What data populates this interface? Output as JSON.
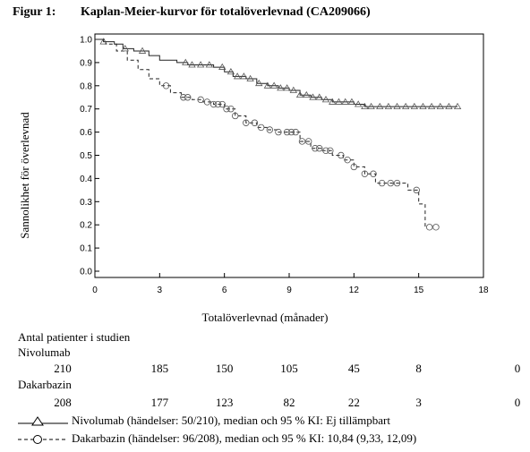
{
  "figure": {
    "label": "Figur 1:",
    "title": "Kaplan-Meier-kurvor för totalöverlevnad (CA209066)"
  },
  "chart_data": {
    "type": "line",
    "ylabel": "Sannolikhet för överlevnad",
    "xlabel": "Totalöverlevnad (månader)",
    "xlim": [
      0,
      18
    ],
    "ylim": [
      0,
      1.0
    ],
    "x_ticks": [
      "0",
      "3",
      "6",
      "9",
      "12",
      "15",
      "18"
    ],
    "y_ticks": [
      "0.0",
      "0.1",
      "0.2",
      "0.3",
      "0.4",
      "0.5",
      "0.6",
      "0.7",
      "0.8",
      "0.9",
      "1.0"
    ],
    "grid": false,
    "series": [
      {
        "name": "Nivolumab",
        "color": "#222222",
        "line_style": "solid",
        "marker": "triangle",
        "x": [
          0,
          0.4,
          0.9,
          1.3,
          1.8,
          2.5,
          3.0,
          3.8,
          4.3,
          5.0,
          5.5,
          6.0,
          6.4,
          7.0,
          7.5,
          8.0,
          8.5,
          9.0,
          9.5,
          10.0,
          10.5,
          11.0,
          11.5,
          12.0,
          12.5,
          13.0,
          14.0,
          15.0,
          16.0,
          16.8
        ],
        "y": [
          1.0,
          0.99,
          0.98,
          0.96,
          0.95,
          0.93,
          0.91,
          0.9,
          0.89,
          0.89,
          0.88,
          0.86,
          0.84,
          0.83,
          0.81,
          0.8,
          0.79,
          0.78,
          0.76,
          0.75,
          0.74,
          0.73,
          0.73,
          0.72,
          0.71,
          0.71,
          0.71,
          0.71,
          0.71,
          0.71
        ],
        "censor_x": [
          0.4,
          1.4,
          2.2,
          4.2,
          4.5,
          4.9,
          5.3,
          5.9,
          6.3,
          6.6,
          6.9,
          7.2,
          7.6,
          8.0,
          8.3,
          8.6,
          8.9,
          9.2,
          9.5,
          9.8,
          10.1,
          10.4,
          10.7,
          11.0,
          11.3,
          11.6,
          11.9,
          12.2,
          12.5,
          12.8,
          13.2,
          13.6,
          14.0,
          14.4,
          14.8,
          15.2,
          15.6,
          16.0,
          16.4,
          16.8
        ]
      },
      {
        "name": "Dakarbazin",
        "color": "#222222",
        "line_style": "dashed",
        "marker": "circle",
        "x": [
          0,
          0.5,
          1.0,
          1.5,
          2.0,
          2.5,
          3.0,
          3.5,
          4.0,
          4.5,
          5.0,
          5.5,
          6.0,
          6.5,
          7.0,
          7.5,
          8.0,
          8.5,
          9.0,
          9.5,
          10.0,
          10.5,
          11.0,
          11.5,
          12.0,
          12.5,
          13.0,
          13.5,
          14.0,
          14.5,
          15.0,
          15.3
        ],
        "y": [
          1.0,
          0.98,
          0.95,
          0.91,
          0.87,
          0.83,
          0.8,
          0.77,
          0.75,
          0.74,
          0.73,
          0.72,
          0.7,
          0.67,
          0.64,
          0.62,
          0.61,
          0.6,
          0.6,
          0.56,
          0.53,
          0.52,
          0.5,
          0.48,
          0.45,
          0.42,
          0.38,
          0.38,
          0.38,
          0.35,
          0.29,
          0.19
        ],
        "censor_x": [
          3.3,
          4.1,
          4.3,
          4.9,
          5.2,
          5.5,
          5.7,
          5.9,
          6.1,
          6.3,
          6.5,
          7.0,
          7.4,
          7.7,
          8.1,
          8.5,
          8.9,
          9.1,
          9.3,
          9.6,
          9.9,
          10.2,
          10.4,
          10.7,
          10.9,
          11.4,
          11.7,
          12.0,
          12.5,
          12.9,
          13.3,
          13.7,
          14.0,
          14.9,
          15.5,
          15.8
        ]
      }
    ]
  },
  "risk_table": {
    "heading": "Antal patienter i studien",
    "x_positions": [
      0,
      3,
      6,
      9,
      12,
      15,
      18
    ],
    "rows": [
      {
        "label": "Nivolumab",
        "values": [
          "210",
          "185",
          "150",
          "105",
          "45",
          "8",
          "0"
        ]
      },
      {
        "label": "Dakarbazin",
        "values": [
          "208",
          "177",
          "123",
          "82",
          "22",
          "3",
          "0"
        ]
      }
    ]
  },
  "legend": {
    "nivolumab": "Nivolumab (händelser: 50/210), median och 95 % KI: Ej tillämpbart",
    "dakarbazin": "Dakarbazin (händelser: 96/208), median och 95 % KI: 10,84 (9,33, 12,09)"
  }
}
